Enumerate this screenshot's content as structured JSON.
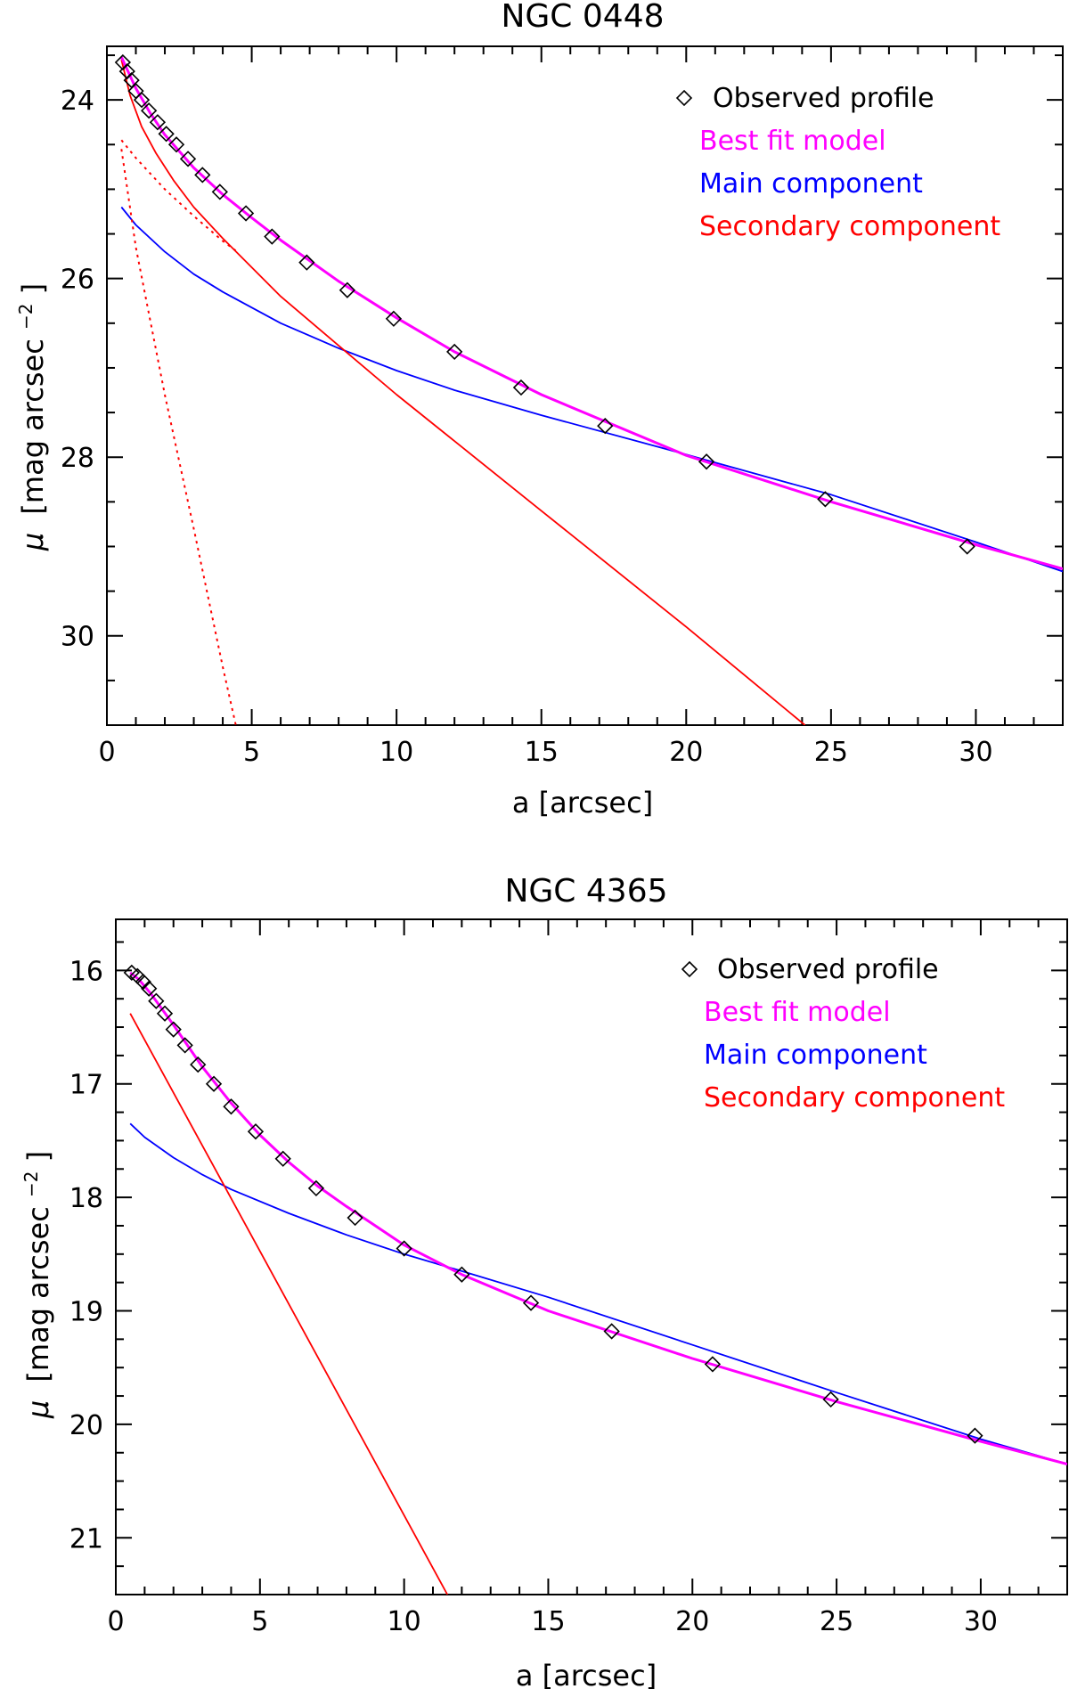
{
  "chart_data": [
    {
      "type": "line",
      "title": "NGC 0448",
      "xlabel": "a [arcsec]",
      "ylabel_symbol": "μ",
      "ylabel_text": "[mag arcsec",
      "ylabel_exp": "−2",
      "ylabel_close": "]",
      "xlim": [
        0,
        33
      ],
      "ylim": [
        31.0,
        23.4
      ],
      "x_ticks": [
        0,
        5,
        10,
        15,
        20,
        25,
        30
      ],
      "y_ticks": [
        24,
        26,
        28,
        30
      ],
      "legend_position": "top-right",
      "legend": [
        {
          "label": "Observed profile",
          "color": "#000000",
          "marker": "diamond"
        },
        {
          "label": "Best fit model",
          "color": "#ff00ff"
        },
        {
          "label": "Main component",
          "color": "#0000ff"
        },
        {
          "label": "Secondary component",
          "color": "#ff0000"
        }
      ],
      "observed": {
        "x": [
          0.55,
          0.7,
          0.85,
          1.0,
          1.2,
          1.45,
          1.75,
          2.05,
          2.4,
          2.8,
          3.3,
          3.9,
          4.8,
          5.7,
          6.9,
          8.3,
          9.9,
          12.0,
          14.3,
          17.2,
          20.7,
          24.8,
          29.7
        ],
        "y": [
          23.58,
          23.68,
          23.78,
          23.9,
          24.0,
          24.12,
          24.25,
          24.38,
          24.5,
          24.66,
          24.84,
          25.03,
          25.27,
          25.53,
          25.82,
          26.13,
          26.45,
          26.82,
          27.22,
          27.65,
          28.05,
          28.47,
          29.0
        ]
      },
      "series": [
        {
          "name": "Best fit model",
          "color": "#ff00ff",
          "style": "solid",
          "width": 3,
          "x": [
            0.5,
            0.7,
            1.0,
            1.5,
            2,
            3,
            4,
            5,
            6,
            8,
            10,
            12,
            15,
            20,
            25,
            30,
            33
          ],
          "y": [
            23.52,
            23.66,
            23.87,
            24.15,
            24.39,
            24.76,
            25.06,
            25.32,
            25.57,
            26.03,
            26.44,
            26.82,
            27.3,
            27.98,
            28.5,
            28.98,
            29.25
          ]
        },
        {
          "name": "Main component",
          "color": "#0000ff",
          "style": "solid",
          "width": 1.8,
          "x": [
            0.5,
            1,
            2,
            3,
            4,
            6,
            8,
            10,
            12,
            15,
            20,
            25,
            30,
            33
          ],
          "y": [
            25.2,
            25.4,
            25.7,
            25.95,
            26.15,
            26.5,
            26.78,
            27.03,
            27.25,
            27.53,
            27.97,
            28.42,
            28.95,
            29.28
          ]
        },
        {
          "name": "Secondary component",
          "color": "#ff0000",
          "style": "solid",
          "width": 1.8,
          "x": [
            0.5,
            0.8,
            1.2,
            1.7,
            2.3,
            3,
            4,
            6,
            8,
            10,
            15,
            20,
            24.1
          ],
          "y": [
            23.55,
            23.95,
            24.3,
            24.6,
            24.9,
            25.2,
            25.55,
            26.2,
            26.75,
            27.3,
            28.6,
            29.9,
            31.0
          ]
        },
        {
          "name": "Secondary sub-component 1",
          "color": "#ff0000",
          "style": "dotted",
          "width": 2,
          "x": [
            0.5,
            1,
            2,
            3,
            4,
            4.5
          ],
          "y": [
            24.45,
            24.65,
            25.0,
            25.3,
            25.58,
            25.7
          ]
        },
        {
          "name": "Secondary sub-component 2",
          "color": "#ff0000",
          "style": "dotted",
          "width": 2,
          "x": [
            0.5,
            1,
            2,
            3,
            4,
            4.45
          ],
          "y": [
            24.55,
            25.65,
            27.3,
            28.8,
            30.35,
            31.0
          ]
        }
      ]
    },
    {
      "type": "line",
      "title": "NGC 4365",
      "xlabel": "a [arcsec]",
      "ylabel_symbol": "μ",
      "ylabel_text": "[mag arcsec",
      "ylabel_exp": "−2",
      "ylabel_close": "]",
      "xlim": [
        0,
        33
      ],
      "ylim": [
        21.5,
        15.55
      ],
      "x_ticks": [
        0,
        5,
        10,
        15,
        20,
        25,
        30
      ],
      "y_ticks": [
        16,
        17,
        18,
        19,
        20,
        21
      ],
      "legend_position": "top-right",
      "legend": [
        {
          "label": "Observed profile",
          "color": "#000000",
          "marker": "diamond"
        },
        {
          "label": "Best fit model",
          "color": "#ff00ff"
        },
        {
          "label": "Main component",
          "color": "#0000ff"
        },
        {
          "label": "Secondary component",
          "color": "#ff0000"
        }
      ],
      "observed": {
        "x": [
          0.55,
          0.75,
          0.95,
          1.15,
          1.4,
          1.7,
          2.0,
          2.4,
          2.85,
          3.4,
          4.0,
          4.85,
          5.8,
          6.95,
          8.3,
          10.0,
          12.0,
          14.4,
          17.2,
          20.7,
          24.8,
          29.8
        ],
        "y": [
          16.02,
          16.05,
          16.1,
          16.16,
          16.27,
          16.38,
          16.52,
          16.66,
          16.83,
          17.0,
          17.2,
          17.42,
          17.66,
          17.92,
          18.18,
          18.45,
          18.68,
          18.93,
          19.18,
          19.47,
          19.78,
          20.1
        ]
      },
      "series": [
        {
          "name": "Best fit model",
          "color": "#ff00ff",
          "style": "solid",
          "width": 3,
          "x": [
            0.5,
            0.8,
            1.2,
            1.6,
            2,
            3,
            4,
            5,
            6,
            7,
            8,
            10,
            12,
            15,
            20,
            25,
            30,
            33
          ],
          "y": [
            16.02,
            16.08,
            16.2,
            16.34,
            16.48,
            16.85,
            17.17,
            17.45,
            17.69,
            17.9,
            18.08,
            18.42,
            18.68,
            19.0,
            19.42,
            19.8,
            20.15,
            20.35
          ]
        },
        {
          "name": "Main component",
          "color": "#0000ff",
          "style": "solid",
          "width": 1.8,
          "x": [
            0.5,
            1,
            2,
            3,
            4,
            6,
            8,
            10,
            12,
            15,
            20,
            25,
            30,
            33
          ],
          "y": [
            17.35,
            17.47,
            17.65,
            17.8,
            17.93,
            18.14,
            18.33,
            18.5,
            18.65,
            18.88,
            19.3,
            19.72,
            20.13,
            20.35
          ]
        },
        {
          "name": "Secondary component",
          "color": "#ff0000",
          "style": "solid",
          "width": 1.8,
          "x": [
            0.5,
            11.5
          ],
          "y": [
            16.38,
            21.5
          ]
        }
      ]
    }
  ]
}
